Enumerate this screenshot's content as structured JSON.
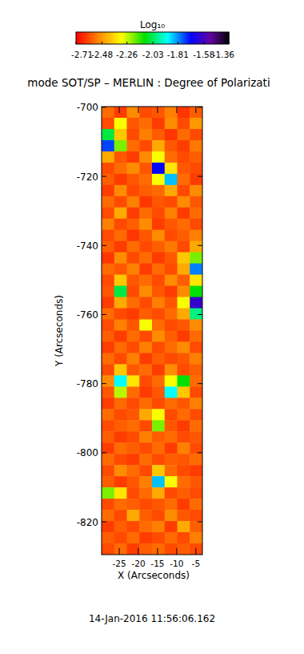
{
  "chart_data": {
    "type": "heatmap",
    "title": "mode SOT/SP – MERLIN : Degree of Polarizati",
    "xlabel": "X (Arcseconds)",
    "ylabel": "Y (Arcseconds)",
    "annotations": [
      "14-Jan-2016 11:56:06.162"
    ],
    "xlim": [
      -29.6,
      -3.3
    ],
    "ylim": [
      -829.5,
      -699.8
    ],
    "xticks": [
      -25,
      -20,
      -15,
      -10,
      -5
    ],
    "yticks": [
      -820,
      -800,
      -780,
      -760,
      -740,
      -720,
      -700
    ],
    "colorbar": {
      "label": "Log₁₀",
      "range": [
        -2.71,
        -1.36
      ],
      "ticks": [
        -2.71,
        -2.48,
        -2.26,
        -2.03,
        -1.81,
        -1.58,
        -1.36
      ]
    },
    "z": [
      [
        -2.55,
        -2.62,
        -2.5,
        -2.6,
        -2.58,
        -2.52,
        -2.63,
        -2.57
      ],
      [
        -2.6,
        -2.3,
        -2.58,
        -2.55,
        -2.62,
        -2.5,
        -2.6,
        -2.48
      ],
      [
        -2.05,
        -2.4,
        -2.6,
        -2.52,
        -2.57,
        -2.63,
        -2.55,
        -2.6
      ],
      [
        -1.75,
        -2.2,
        -2.55,
        -2.6,
        -2.45,
        -2.58,
        -2.62,
        -2.53
      ],
      [
        -2.45,
        -2.58,
        -2.62,
        -2.5,
        -2.3,
        -2.55,
        -2.6,
        -2.57
      ],
      [
        -2.6,
        -2.55,
        -2.5,
        -2.58,
        -1.7,
        -2.35,
        -2.58,
        -2.6
      ],
      [
        -2.57,
        -2.62,
        -2.58,
        -2.55,
        -2.3,
        -1.85,
        -2.55,
        -2.62
      ],
      [
        -2.62,
        -2.5,
        -2.6,
        -2.57,
        -2.55,
        -2.45,
        -2.6,
        -2.5
      ],
      [
        -2.55,
        -2.6,
        -2.52,
        -2.63,
        -2.58,
        -2.6,
        -2.5,
        -2.58
      ],
      [
        -2.6,
        -2.45,
        -2.62,
        -2.55,
        -2.6,
        -2.52,
        -2.62,
        -2.55
      ],
      [
        -2.52,
        -2.6,
        -2.57,
        -2.5,
        -2.62,
        -2.58,
        -2.55,
        -2.6
      ],
      [
        -2.6,
        -2.55,
        -2.63,
        -2.58,
        -2.5,
        -2.6,
        -2.57,
        -2.52
      ],
      [
        -2.57,
        -2.62,
        -2.55,
        -2.6,
        -2.57,
        -2.53,
        -2.6,
        -2.45
      ],
      [
        -2.63,
        -2.5,
        -2.6,
        -2.55,
        -2.62,
        -2.58,
        -2.4,
        -2.2
      ],
      [
        -2.55,
        -2.58,
        -2.52,
        -2.62,
        -2.55,
        -2.6,
        -2.45,
        -1.8
      ],
      [
        -2.6,
        -2.4,
        -2.58,
        -2.55,
        -2.6,
        -2.5,
        -2.57,
        -2.35
      ],
      [
        -2.58,
        -2.05,
        -2.6,
        -2.5,
        -2.58,
        -2.62,
        -2.5,
        -2.1
      ],
      [
        -2.62,
        -2.45,
        -2.55,
        -2.6,
        -2.52,
        -2.58,
        -2.3,
        -1.6
      ],
      [
        -2.55,
        -2.6,
        -2.62,
        -2.57,
        -2.6,
        -2.55,
        -2.45,
        -2.0
      ],
      [
        -2.6,
        -2.52,
        -2.58,
        -2.3,
        -2.55,
        -2.6,
        -2.58,
        -2.5
      ],
      [
        -2.57,
        -2.62,
        -2.55,
        -2.6,
        -2.5,
        -2.57,
        -2.62,
        -2.55
      ],
      [
        -2.62,
        -2.55,
        -2.6,
        -2.52,
        -2.6,
        -2.55,
        -2.5,
        -2.6
      ],
      [
        -2.55,
        -2.6,
        -2.52,
        -2.62,
        -2.57,
        -2.6,
        -2.58,
        -2.52
      ],
      [
        -2.6,
        -2.4,
        -2.58,
        -2.55,
        -2.62,
        -2.5,
        -2.6,
        -2.57
      ],
      [
        -2.5,
        -1.9,
        -2.35,
        -2.6,
        -2.55,
        -2.3,
        -2.1,
        -2.55
      ],
      [
        -2.58,
        -2.25,
        -2.55,
        -2.62,
        -2.58,
        -1.9,
        -2.4,
        -2.6
      ],
      [
        -2.62,
        -2.55,
        -2.6,
        -2.55,
        -2.6,
        -2.55,
        -2.58,
        -2.52
      ],
      [
        -2.55,
        -2.6,
        -2.58,
        -2.45,
        -2.3,
        -2.6,
        -2.55,
        -2.6
      ],
      [
        -2.6,
        -2.57,
        -2.55,
        -2.6,
        -2.2,
        -2.58,
        -2.62,
        -2.55
      ],
      [
        -2.57,
        -2.62,
        -2.6,
        -2.52,
        -2.57,
        -2.55,
        -2.6,
        -2.58
      ],
      [
        -2.62,
        -2.55,
        -2.57,
        -2.6,
        -2.55,
        -2.62,
        -2.52,
        -2.6
      ],
      [
        -2.55,
        -2.6,
        -2.62,
        -2.55,
        -2.6,
        -2.57,
        -2.58,
        -2.55
      ],
      [
        -2.6,
        -2.5,
        -2.55,
        -2.6,
        -2.4,
        -2.55,
        -2.6,
        -2.62
      ],
      [
        -2.57,
        -2.62,
        -2.58,
        -2.52,
        -1.85,
        -2.3,
        -2.55,
        -2.58
      ],
      [
        -2.2,
        -2.35,
        -2.6,
        -2.55,
        -2.45,
        -2.6,
        -2.57,
        -2.6
      ],
      [
        -2.6,
        -2.55,
        -2.57,
        -2.6,
        -2.58,
        -2.55,
        -2.62,
        -2.55
      ],
      [
        -2.55,
        -2.6,
        -2.45,
        -2.57,
        -2.6,
        -2.5,
        -2.58,
        -2.6
      ],
      [
        -2.62,
        -2.57,
        -2.6,
        -2.55,
        -2.52,
        -2.62,
        -2.45,
        -2.57
      ],
      [
        -2.57,
        -2.6,
        -2.55,
        -2.62,
        -2.6,
        -2.55,
        -2.6,
        -2.52
      ],
      [
        -2.6,
        -2.55,
        -2.62,
        -2.57,
        -2.55,
        -2.6,
        -2.57,
        -2.6
      ]
    ]
  }
}
